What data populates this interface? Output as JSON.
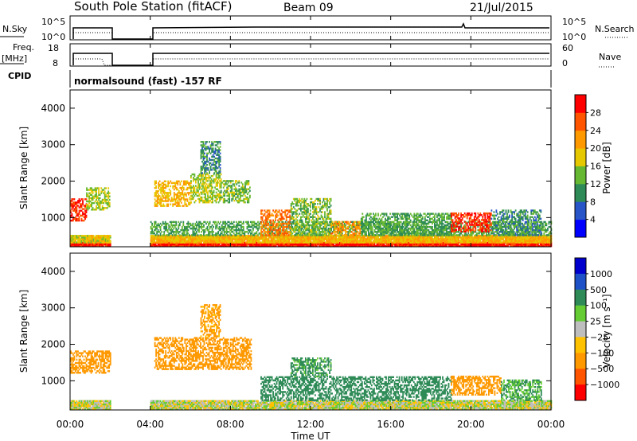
{
  "header": {
    "station": "South Pole Station (fitACF)",
    "beam": "Beam 09",
    "date": "21/Jul/2015"
  },
  "panels": {
    "nsky": {
      "label": "N.Sky",
      "tick_top": "10^5",
      "tick_bottom": "10^0"
    },
    "nsearch": {
      "label": "N.Search",
      "tick_top": "10^5",
      "tick_bottom": "10^0"
    },
    "freq": {
      "label_line1": "Freq.",
      "label_line2": "[MHz]",
      "tick_top": "18",
      "tick_bottom": "8"
    },
    "nave": {
      "label": "Nave",
      "tick_top": "60",
      "tick_bottom": "0"
    },
    "cpid": {
      "label": "CPID",
      "value": "normalsound (fast) -157 RF"
    }
  },
  "colors": {
    "power": [
      "#0000ff",
      "#2855c8",
      "#2e8b57",
      "#66b832",
      "#e6c800",
      "#ff9900",
      "#ff5500",
      "#ff0000"
    ],
    "velocity": [
      "#ff0000",
      "#ff5500",
      "#ff9900",
      "#ffc200",
      "#bebebe",
      "#66cc33",
      "#2e8b57",
      "#1e50c8",
      "#0000cc"
    ],
    "line": "#000000"
  },
  "chart_data": [
    {
      "type": "heatmap",
      "name": "power",
      "xlabel": "Time UT",
      "ylabel": "Slant Range [km]",
      "x_ticks": [
        "00:00",
        "04:00",
        "08:00",
        "12:00",
        "16:00",
        "20:00",
        "00:00"
      ],
      "y_ticks": [
        "1000",
        "2000",
        "3000",
        "4000"
      ],
      "y_tick_values": [
        1000,
        2000,
        3000,
        4000
      ],
      "ylim": [
        200,
        4500
      ],
      "xlim_hours": [
        0,
        24
      ],
      "colorbar": {
        "label": "Power [dB]",
        "ticks": [
          "4",
          "8",
          "12",
          "16",
          "20",
          "24",
          "28"
        ],
        "range": [
          0,
          32
        ]
      },
      "data_gap_hours": [
        2,
        4
      ],
      "regions": [
        {
          "t": [
            0.0,
            2.0
          ],
          "r": [
            200,
            300
          ],
          "v": 30
        },
        {
          "t": [
            4.0,
            24.0
          ],
          "r": [
            200,
            300
          ],
          "v": 30
        },
        {
          "t": [
            0.0,
            2.0
          ],
          "r": [
            300,
            500
          ],
          "v": 18
        },
        {
          "t": [
            4.0,
            24.0
          ],
          "r": [
            300,
            500
          ],
          "v": 20
        },
        {
          "t": [
            4.0,
            24.0
          ],
          "r": [
            500,
            900
          ],
          "v": 12
        },
        {
          "t": [
            0.0,
            0.8
          ],
          "r": [
            900,
            1500
          ],
          "v": 28
        },
        {
          "t": [
            0.8,
            2.0
          ],
          "r": [
            1200,
            1800
          ],
          "v": 16
        },
        {
          "t": [
            4.2,
            6.0
          ],
          "r": [
            1300,
            2000
          ],
          "v": 20
        },
        {
          "t": [
            6.0,
            7.5
          ],
          "r": [
            1400,
            2200
          ],
          "v": 16
        },
        {
          "t": [
            7.5,
            9.0
          ],
          "r": [
            1400,
            2000
          ],
          "v": 14
        },
        {
          "t": [
            6.5,
            7.5
          ],
          "r": [
            2200,
            3100
          ],
          "v": 10
        },
        {
          "t": [
            9.5,
            11.0
          ],
          "r": [
            500,
            1200
          ],
          "v": 24
        },
        {
          "t": [
            11.0,
            13.0
          ],
          "r": [
            500,
            1500
          ],
          "v": 14
        },
        {
          "t": [
            13.0,
            14.5
          ],
          "r": [
            500,
            900
          ],
          "v": 22
        },
        {
          "t": [
            14.5,
            19.0
          ],
          "r": [
            500,
            1100
          ],
          "v": 12
        },
        {
          "t": [
            19.0,
            21.0
          ],
          "r": [
            600,
            1100
          ],
          "v": 28
        },
        {
          "t": [
            21.0,
            23.5
          ],
          "r": [
            500,
            1200
          ],
          "v": 10
        }
      ]
    },
    {
      "type": "heatmap",
      "name": "velocity",
      "xlabel": "Time UT",
      "ylabel": "Slant Range [km]",
      "x_ticks": [
        "00:00",
        "04:00",
        "08:00",
        "12:00",
        "16:00",
        "20:00",
        "00:00"
      ],
      "y_ticks": [
        "1000",
        "2000",
        "3000",
        "4000"
      ],
      "y_tick_values": [
        1000,
        2000,
        3000,
        4000
      ],
      "ylim": [
        200,
        4500
      ],
      "xlim_hours": [
        0,
        24
      ],
      "colorbar": {
        "label": "Velocity [m s⁻¹]",
        "ticks": [
          "1000",
          "500",
          "100",
          "25",
          "−25",
          "−100",
          "−500",
          "−1000"
        ]
      },
      "data_gap_hours": [
        2,
        4
      ],
      "regions": [
        {
          "t": [
            0.0,
            2.0
          ],
          "r": [
            200,
            450
          ],
          "v": 0
        },
        {
          "t": [
            4.0,
            24.0
          ],
          "r": [
            200,
            450
          ],
          "v": 0
        },
        {
          "t": [
            0.0,
            2.0
          ],
          "r": [
            1200,
            1800
          ],
          "v": -200
        },
        {
          "t": [
            4.2,
            9.0
          ],
          "r": [
            1300,
            2200
          ],
          "v": -250
        },
        {
          "t": [
            6.5,
            7.5
          ],
          "r": [
            2200,
            3100
          ],
          "v": -150
        },
        {
          "t": [
            9.5,
            19.0
          ],
          "r": [
            450,
            1100
          ],
          "v": 200
        },
        {
          "t": [
            11.0,
            13.0
          ],
          "r": [
            1100,
            1600
          ],
          "v": 150
        },
        {
          "t": [
            19.0,
            21.5
          ],
          "r": [
            600,
            1100
          ],
          "v": -200
        },
        {
          "t": [
            21.5,
            23.5
          ],
          "r": [
            450,
            1000
          ],
          "v": 100
        }
      ]
    }
  ]
}
